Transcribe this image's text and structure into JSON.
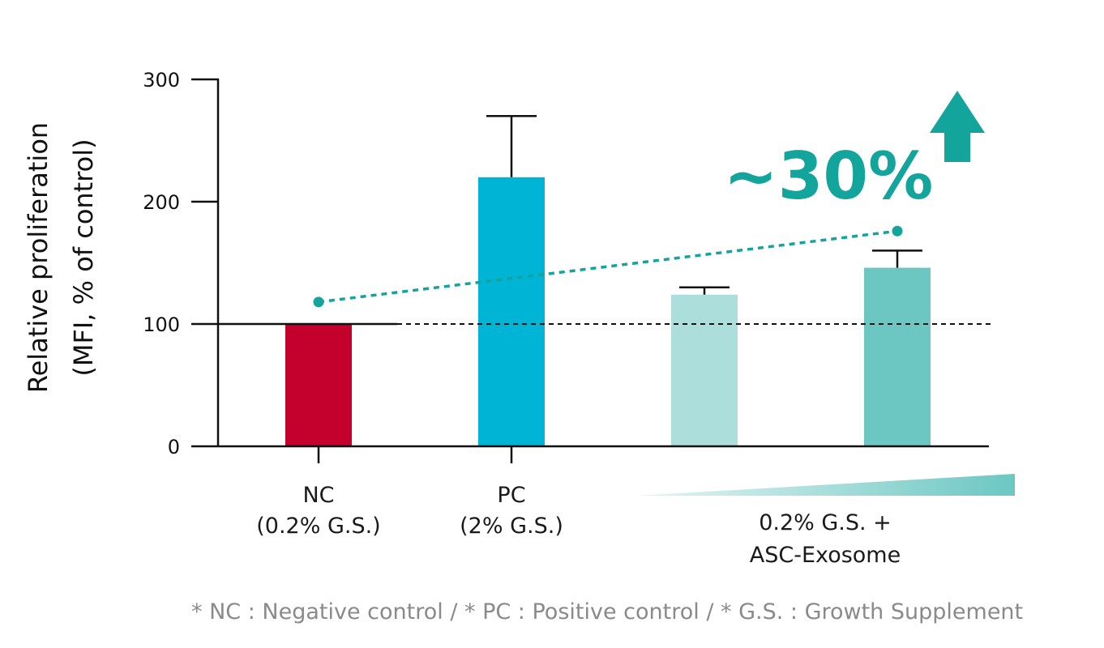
{
  "chart_data": {
    "type": "bar",
    "ylabel": [
      "Relative proliferation",
      "(MFI, % of control)"
    ],
    "ylim": [
      0,
      300
    ],
    "yticks": [
      0,
      100,
      200,
      300
    ],
    "categories": [
      {
        "lines": [
          "NC",
          "(0.2% G.S.)"
        ]
      },
      {
        "lines": [
          "PC",
          "(2% G.S.)"
        ]
      }
    ],
    "group_label": [
      "0.2% G.S. +",
      "ASC-Exosome"
    ],
    "bars": [
      {
        "value": 100,
        "error": 0,
        "color": "#c4002d"
      },
      {
        "value": 220,
        "error": 50,
        "color": "#00b4d6"
      },
      {
        "value": 124,
        "error": 6,
        "color": "#acdfdb"
      },
      {
        "value": 146,
        "error": 14,
        "color": "#6cc7c3"
      }
    ],
    "reference_line": 100,
    "trend_line": [
      118,
      176
    ],
    "annotation": "~30%",
    "accent_color": "#13a49c"
  },
  "footnote": "* NC : Negative control  /  * PC : Positive control  /  * G.S. : Growth Supplement"
}
